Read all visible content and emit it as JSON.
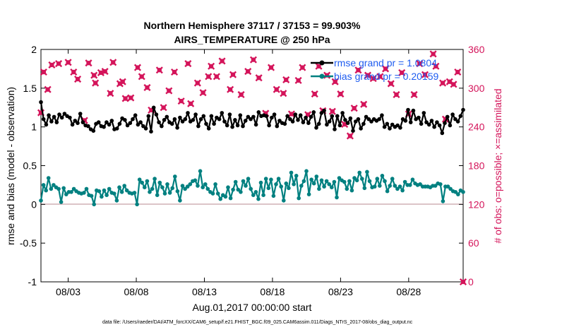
{
  "titles": {
    "line1": "Northern Hemisphere 37117 / 37153 = 99.903%",
    "line2": "AIRS_TEMPERATURE @ 250 hPa"
  },
  "footnote": "data file: /Users/raeder/DAI/ATM_forcXX/CAM6_setup/f.e21.FHIST_BGC.f09_025.CAM6assim.011/Diags_NTrS_2017-08/obs_diag_output.nc",
  "colors": {
    "rmse": "#000000",
    "bias": "#008080",
    "obs_possible": "#d4145a",
    "obs_assimilated": "#d4145a",
    "legend_text": "#1e5cf0",
    "zero_line": "#c8a0a6"
  },
  "chart_data": {
    "type": "line",
    "xlabel": "Aug.01,2017 00:00:00 start",
    "ylabel_left": "rmse and bias (model - observation)",
    "ylabel_right": "# of obs: o=possible; ×=assimilated",
    "x_ticks": [
      "08/03",
      "08/08",
      "08/13",
      "08/18",
      "08/23",
      "08/28"
    ],
    "x_tick_days": [
      3,
      8,
      13,
      18,
      23,
      28
    ],
    "xlim_days": [
      1,
      32
    ],
    "ylim_left": [
      -1,
      2
    ],
    "yticks_left": [
      "2",
      "1.5",
      "1",
      "0.5",
      "0",
      "-0.5",
      "-1"
    ],
    "ylim_right": [
      0,
      360
    ],
    "yticks_right": [
      "360",
      "300",
      "240",
      "180",
      "120",
      "60",
      "0"
    ],
    "grid": false,
    "legend_position": "top-right",
    "series": [
      {
        "name": "rmse grand pr = 1.0804",
        "axis": "left",
        "values": [
          1.32,
          1.1,
          1.03,
          1.15,
          1.07,
          1.13,
          1.06,
          1.16,
          1.12,
          1.17,
          1.14,
          1.12,
          1.03,
          1.08,
          1.05,
          1.17,
          1.06,
          1.02,
          1.01,
          0.97,
          0.95,
          1.04,
          1.06,
          1.01,
          1.0,
          1.06,
          1.03,
          1.08,
          0.97,
          0.98,
          1.04,
          1.11,
          1.09,
          1.02,
          1.05,
          1.1,
          1.15,
          1.03,
          1.06,
          1.01,
          0.98,
          1.14,
          0.94,
          1.25,
          1.16,
          1.06,
          1.01,
          1.09,
          1.13,
          1.06,
          1.04,
          1.1,
          0.99,
          1.12,
          1.07,
          1.1,
          1.18,
          1.07,
          1.09,
          1.16,
          1.01,
          1.1,
          1.14,
          1.04,
          0.98,
          1.14,
          1.04,
          1.12,
          1.1,
          1.18,
          1.07,
          1.02,
          1.16,
          1.0,
          1.09,
          1.02,
          1.15,
          1.01,
          1.08,
          1.13,
          1.1,
          1.13,
          1.03,
          1.19,
          1.14,
          1.15,
          1.14,
          1.02,
          1.12,
          1.16,
          1.01,
          1.08,
          1.05,
          1.04,
          1.14,
          1.1,
          1.07,
          1.16,
          1.09,
          1.15,
          1.06,
          1.12,
          1.05,
          1.13,
          1.19,
          0.99,
          1.04,
          1.18,
          1.21,
          1.03,
          1.07,
          1.14,
          0.97,
          1.14,
          1.02,
          1.18,
          1.09,
          1.05,
          1.11,
          0.95,
          1.07,
          1.1,
          0.98,
          1.04,
          1.13,
          1.1,
          1.07,
          1.1,
          1.08,
          1.1,
          1.15,
          1.0,
          1.04,
          0.98,
          1.03,
          1.0,
          1.02,
          0.99,
          1.1,
          1.08,
          1.22,
          1.06,
          1.21,
          1.1,
          1.12,
          1.04,
          1.18,
          1.06,
          1.03,
          1.08,
          1.0,
          1.06,
          1.02,
          0.92,
          1.05,
          1.13,
          1.02,
          1.16,
          1.1,
          1.07,
          1.14,
          1.22
        ]
      },
      {
        "name": "bias grand pr = 0.20159",
        "axis": "left",
        "values": [
          0.05,
          0.25,
          0.18,
          0.34,
          0.2,
          0.25,
          0.22,
          0.2,
          0.03,
          0.21,
          0.13,
          0.16,
          0.16,
          0.2,
          0.17,
          0.15,
          0.14,
          0.15,
          0.2,
          0.12,
          0.11,
          0.0,
          0.18,
          0.17,
          0.1,
          0.18,
          0.12,
          0.2,
          0.15,
          0.14,
          0.05,
          0.22,
          0.16,
          0.24,
          0.18,
          0.15,
          0.14,
          0.15,
          0.0,
          0.32,
          0.28,
          0.22,
          0.3,
          0.16,
          0.2,
          0.33,
          0.12,
          0.28,
          0.22,
          0.14,
          0.26,
          0.15,
          0.21,
          0.36,
          0.17,
          0.05,
          0.24,
          0.2,
          0.23,
          0.26,
          0.3,
          0.31,
          0.24,
          0.43,
          0.22,
          0.26,
          0.2,
          0.16,
          0.14,
          0.26,
          0.14,
          0.07,
          0.12,
          0.1,
          0.22,
          0.08,
          0.19,
          0.29,
          0.19,
          0.16,
          0.3,
          0.24,
          0.33,
          0.2,
          0.12,
          0.16,
          0.07,
          0.28,
          0.12,
          0.33,
          0.21,
          0.32,
          0.11,
          0.26,
          0.33,
          0.23,
          0.05,
          0.27,
          0.21,
          0.41,
          0.26,
          0.37,
          0.08,
          0.24,
          0.3,
          0.43,
          0.13,
          0.32,
          0.27,
          0.36,
          0.2,
          0.31,
          0.23,
          0.3,
          0.26,
          0.22,
          0.29,
          0.09,
          0.34,
          0.31,
          0.29,
          0.2,
          0.3,
          0.18,
          0.34,
          0.31,
          0.41,
          0.33,
          0.21,
          0.42,
          0.3,
          0.22,
          0.23,
          0.33,
          0.24,
          0.37,
          0.3,
          0.17,
          0.24,
          0.33,
          0.24,
          0.2,
          0.23,
          0.18,
          0.29,
          0.25,
          0.25,
          0.32,
          0.27,
          0.25,
          0.26,
          0.23,
          0.23,
          0.23,
          0.22,
          0.24,
          0.24,
          0.27,
          0.26,
          0.04,
          0.23,
          0.23,
          0.2,
          0.17,
          0.16,
          0.13,
          0.18,
          0.16
        ]
      },
      {
        "name": "obs assimilated",
        "axis": "right",
        "marker": "x",
        "points": [
          [
            1.0,
            262
          ],
          [
            1.2,
            325
          ],
          [
            1.5,
            298
          ],
          [
            1.8,
            336
          ],
          [
            2.3,
            338
          ],
          [
            3.0,
            340
          ],
          [
            3.4,
            325
          ],
          [
            3.7,
            314
          ],
          [
            4.2,
            250
          ],
          [
            4.5,
            339
          ],
          [
            4.9,
            320
          ],
          [
            5.0,
            308
          ],
          [
            5.4,
            324
          ],
          [
            5.7,
            326
          ],
          [
            6.1,
            292
          ],
          [
            6.3,
            340
          ],
          [
            6.8,
            307
          ],
          [
            7.0,
            310
          ],
          [
            7.2,
            284
          ],
          [
            7.6,
            285
          ],
          [
            8.1,
            332
          ],
          [
            8.4,
            318
          ],
          [
            8.8,
            301
          ],
          [
            9.1,
            266
          ],
          [
            9.7,
            328
          ],
          [
            10.0,
            270
          ],
          [
            10.4,
            296
          ],
          [
            10.8,
            325
          ],
          [
            11.3,
            280
          ],
          [
            11.8,
            338
          ],
          [
            12.0,
            276
          ],
          [
            12.5,
            308
          ],
          [
            12.9,
            293
          ],
          [
            13.3,
            318
          ],
          [
            13.5,
            334
          ],
          [
            13.9,
            318
          ],
          [
            14.3,
            342
          ],
          [
            14.9,
            298
          ],
          [
            15.1,
            321
          ],
          [
            15.7,
            290
          ],
          [
            16.2,
            326
          ],
          [
            16.6,
            344
          ],
          [
            17.0,
            316
          ],
          [
            17.5,
            261
          ],
          [
            17.9,
            332
          ],
          [
            18.3,
            298
          ],
          [
            18.8,
            292
          ],
          [
            19.0,
            313
          ],
          [
            19.4,
            260
          ],
          [
            19.9,
            312
          ],
          [
            20.2,
            332
          ],
          [
            20.6,
            259
          ],
          [
            21.1,
            291
          ],
          [
            21.4,
            334
          ],
          [
            21.7,
            265
          ],
          [
            22.0,
            320
          ],
          [
            22.4,
            264
          ],
          [
            22.6,
            310
          ],
          [
            23.0,
            291
          ],
          [
            23.3,
            244
          ],
          [
            23.7,
            226
          ],
          [
            24.0,
            269
          ],
          [
            24.3,
            328
          ],
          [
            24.7,
            275
          ],
          [
            25.0,
            320
          ],
          [
            25.4,
            315
          ],
          [
            25.9,
            318
          ],
          [
            26.3,
            330
          ],
          [
            26.7,
            307
          ],
          [
            27.1,
            290
          ],
          [
            27.5,
            324
          ],
          [
            28.0,
            260
          ],
          [
            28.4,
            290
          ],
          [
            28.8,
            338
          ],
          [
            29.2,
            321
          ],
          [
            29.8,
            353
          ],
          [
            30.0,
            334
          ],
          [
            30.5,
            308
          ],
          [
            30.7,
            252
          ],
          [
            31.0,
            310
          ],
          [
            31.3,
            306
          ],
          [
            31.6,
            325
          ],
          [
            32.0,
            0
          ]
        ]
      }
    ]
  }
}
